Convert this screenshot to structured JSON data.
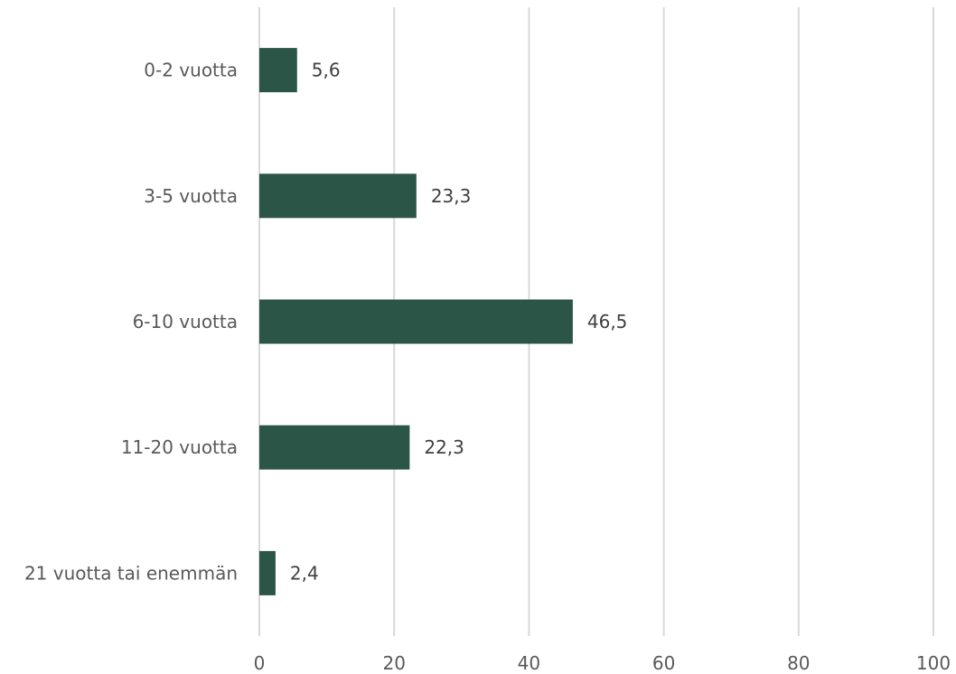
{
  "chart_data": {
    "type": "bar",
    "orientation": "horizontal",
    "title": "",
    "xlabel": "",
    "ylabel": "",
    "categories": [
      "0-2 vuotta",
      "3-5 vuotta",
      "6-10 vuotta",
      "11-20 vuotta",
      "21 vuotta tai enemmän"
    ],
    "values": [
      5.6,
      23.3,
      46.5,
      22.3,
      2.4
    ],
    "data_labels": [
      "5,6",
      "23,3",
      "46,5",
      "22,3",
      "2,4"
    ],
    "xlim": [
      0,
      100
    ],
    "x_ticks": [
      0,
      20,
      40,
      60,
      80,
      100
    ],
    "x_tick_labels": [
      "0",
      "20",
      "40",
      "60",
      "80",
      "100"
    ],
    "grid": true,
    "legend": "none",
    "bar_color": "#2a5547",
    "gridline_color": "#d9d9d9"
  }
}
